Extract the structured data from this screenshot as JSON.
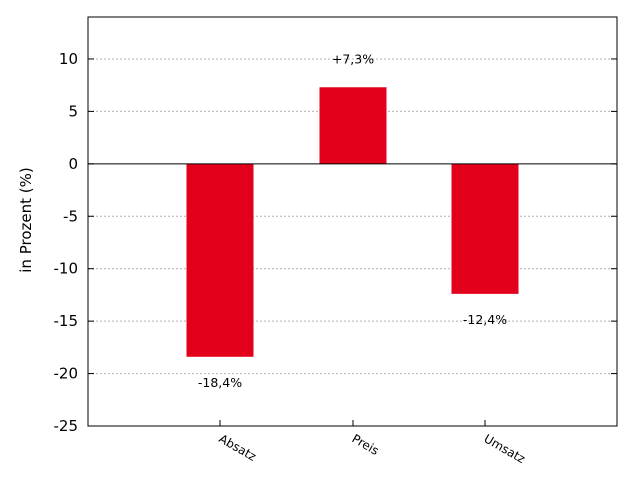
{
  "chart_data": {
    "type": "bar",
    "categories": [
      "Absatz",
      "Preis",
      "Umsatz"
    ],
    "values": [
      -18.4,
      7.3,
      -12.4
    ],
    "data_labels": [
      "-18,4%",
      "+7,3%",
      "-12,4%"
    ],
    "title": "",
    "xlabel": "",
    "ylabel": "in Prozent (%)",
    "ylim": [
      -25,
      14
    ],
    "yticks": [
      10,
      5,
      0,
      -5,
      -10,
      -15,
      -20,
      -25
    ],
    "ytick_labels": [
      "10",
      "5",
      "0",
      "-5",
      "-10",
      "-15",
      "-20",
      "-25"
    ],
    "grid": true,
    "bar_color": "#e2001a",
    "legend": "none"
  }
}
